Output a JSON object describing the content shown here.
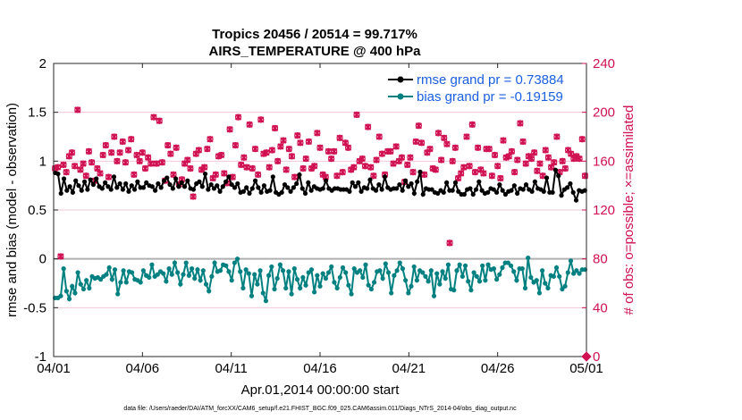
{
  "chart_data": {
    "type": "line",
    "title": "Tropics 20456 / 20514 = 99.717%",
    "subtitle": "AIRS_TEMPERATURE @ 400 hPa",
    "xlabel": "Apr.01,2014 00:00:00 start",
    "ylabel": "rmse and bias (model - observation)",
    "ylabel_right": "# of obs: o=possible; ×=assimilated",
    "xlim": [
      0,
      30
    ],
    "ylim": [
      -1,
      2
    ],
    "ylim_right": [
      0,
      240
    ],
    "x_tick_values": [
      0,
      5,
      10,
      15,
      20,
      25,
      30
    ],
    "x_tick_labels": [
      "04/01",
      "04/06",
      "04/11",
      "04/16",
      "04/21",
      "04/26",
      "05/01"
    ],
    "y_tick_values": [
      -1,
      -0.5,
      0,
      0.5,
      1,
      1.5,
      2
    ],
    "y_tick_labels": [
      "-1",
      "-0.5",
      "0",
      "0.5",
      "1",
      "1.5",
      "2"
    ],
    "y2_tick_values": [
      0,
      40,
      80,
      120,
      160,
      200,
      240
    ],
    "y2_tick_labels": [
      "0",
      "40",
      "80",
      "120",
      "160",
      "200",
      "240"
    ],
    "legend_position": "top-right",
    "series": [
      {
        "name": "rmse grand pr = 0.73884",
        "axis": "left",
        "color": "#000000",
        "marker": "circle",
        "values": [
          0.88,
          0.87,
          0.67,
          0.82,
          0.7,
          0.74,
          0.68,
          0.8,
          0.75,
          0.7,
          0.79,
          0.71,
          0.81,
          0.76,
          0.82,
          0.74,
          0.72,
          0.78,
          0.74,
          0.71,
          0.84,
          0.73,
          0.77,
          0.71,
          0.77,
          0.69,
          0.75,
          0.71,
          0.79,
          0.73,
          0.73,
          0.78,
          0.75,
          0.74,
          0.7,
          0.77,
          0.73,
          0.8,
          0.83,
          0.76,
          0.72,
          0.82,
          0.74,
          0.78,
          0.74,
          0.8,
          0.72,
          0.71,
          0.77,
          0.79,
          0.74,
          0.87,
          0.71,
          0.76,
          0.72,
          0.75,
          0.69,
          0.74,
          0.79,
          0.84,
          0.76,
          0.73,
          0.77,
          0.68,
          0.69,
          0.73,
          0.67,
          0.72,
          0.8,
          0.73,
          0.68,
          0.75,
          0.69,
          0.7,
          0.84,
          0.68,
          0.66,
          0.68,
          0.76,
          0.73,
          0.69,
          0.73,
          0.77,
          0.86,
          0.72,
          0.67,
          0.78,
          0.7,
          0.74,
          0.72,
          0.71,
          0.72,
          0.8,
          0.72,
          0.7,
          0.72,
          0.72,
          0.71,
          0.71,
          0.71,
          0.69,
          0.78,
          0.74,
          0.78,
          0.69,
          0.73,
          0.72,
          0.81,
          0.72,
          0.7,
          0.76,
          0.71,
          0.84,
          0.73,
          0.71,
          0.72,
          0.72,
          0.76,
          0.7,
          0.8,
          0.74,
          0.77,
          0.67,
          0.79,
          0.89,
          0.66,
          0.72,
          0.71,
          0.71,
          0.68,
          0.67,
          0.7,
          0.68,
          0.78,
          0.7,
          0.7,
          0.78,
          0.69,
          0.66,
          0.66,
          0.71,
          0.72,
          0.66,
          0.71,
          0.79,
          0.7,
          0.67,
          0.68,
          0.72,
          0.71,
          0.68,
          0.76,
          0.7,
          0.66,
          0.69,
          0.7,
          0.75,
          0.67,
          0.72,
          0.71,
          0.76,
          0.71,
          0.69,
          0.79,
          0.72,
          0.71,
          0.69,
          0.83,
          0.68,
          0.68,
          0.91,
          0.85,
          0.65,
          0.71,
          0.73,
          0.77,
          0.68,
          0.6,
          0.7,
          0.69,
          0.7
        ]
      },
      {
        "name": "bias grand pr = -0.19159",
        "axis": "left",
        "color": "#008080",
        "marker": "circle",
        "values": [
          -0.4,
          -0.4,
          -0.38,
          -0.1,
          -0.33,
          -0.41,
          -0.28,
          -0.35,
          -0.14,
          -0.26,
          -0.31,
          -0.22,
          -0.3,
          -0.18,
          -0.2,
          -0.19,
          -0.21,
          -0.18,
          -0.16,
          -0.09,
          -0.21,
          -0.11,
          -0.36,
          -0.24,
          -0.12,
          -0.24,
          -0.13,
          -0.14,
          -0.21,
          -0.22,
          -0.24,
          -0.12,
          -0.17,
          -0.19,
          -0.06,
          -0.18,
          -0.16,
          -0.13,
          -0.15,
          -0.23,
          -0.1,
          -0.16,
          -0.04,
          -0.14,
          -0.26,
          -0.16,
          -0.04,
          -0.17,
          -0.1,
          -0.2,
          -0.11,
          -0.22,
          -0.12,
          -0.26,
          -0.33,
          -0.18,
          -0.04,
          -0.13,
          -0.12,
          -0.06,
          -0.07,
          -0.13,
          -0.22,
          -0.04,
          0.0,
          -0.13,
          -0.3,
          -0.11,
          -0.15,
          -0.38,
          -0.16,
          -0.26,
          -0.12,
          -0.35,
          -0.43,
          -0.17,
          -0.08,
          -0.31,
          -0.2,
          -0.06,
          -0.12,
          -0.3,
          -0.13,
          -0.36,
          -0.1,
          -0.21,
          -0.3,
          -0.19,
          -0.27,
          -0.14,
          -0.11,
          -0.34,
          -0.17,
          -0.28,
          -0.15,
          -0.2,
          -0.14,
          -0.08,
          -0.24,
          -0.3,
          -0.19,
          -0.09,
          -0.14,
          -0.27,
          -0.36,
          -0.1,
          -0.14,
          -0.12,
          -0.19,
          -0.06,
          -0.27,
          -0.31,
          -0.24,
          -0.13,
          -0.12,
          -0.2,
          -0.05,
          -0.14,
          -0.35,
          -0.17,
          -0.12,
          -0.04,
          -0.1,
          -0.22,
          -0.35,
          -0.28,
          -0.08,
          -0.22,
          -0.12,
          -0.14,
          -0.18,
          -0.23,
          -0.12,
          -0.38,
          -0.15,
          -0.26,
          -0.13,
          -0.2,
          -0.06,
          -0.31,
          -0.32,
          -0.12,
          -0.06,
          -0.18,
          -0.07,
          -0.23,
          -0.32,
          -0.14,
          -0.18,
          -0.23,
          -0.07,
          -0.22,
          -0.06,
          -0.11,
          -0.1,
          -0.21,
          -0.16,
          -0.09,
          -0.04,
          -0.04,
          -0.07,
          -0.13,
          -0.22,
          -0.1,
          -0.1,
          -0.3,
          0.01,
          -0.19,
          -0.24,
          -0.22,
          -0.35,
          -0.12,
          -0.25,
          -0.3,
          -0.17,
          -0.18,
          -0.09,
          -0.18,
          -0.31,
          -0.28,
          -0.14,
          -0.02,
          -0.15,
          -0.12,
          -0.15,
          -0.11,
          -0.11
        ]
      },
      {
        "name": "# of obs possible",
        "axis": "right",
        "color": "#d01050",
        "marker": "circle-open",
        "values": [
          154,
          155,
          82,
          157,
          151,
          164,
          167,
          156,
          202,
          153,
          158,
          148,
          168,
          159,
          144,
          154,
          150,
          165,
          173,
          147,
          167,
          180,
          160,
          167,
          176,
          159,
          169,
          178,
          149,
          165,
          160,
          167,
          154,
          163,
          158,
          196,
          158,
          193,
          159,
          144,
          173,
          166,
          149,
          171,
          141,
          145,
          158,
          161,
          154,
          131,
          166,
          169,
          153,
          155,
          170,
          178,
          146,
          149,
          164,
          165,
          150,
          142,
          186,
          147,
          173,
          196,
          157,
          163,
          155,
          190,
          154,
          170,
          149,
          194,
          166,
          167,
          155,
          169,
          187,
          160,
          172,
          177,
          153,
          170,
          164,
          147,
          181,
          175,
          154,
          162,
          176,
          154,
          156,
          183,
          171,
          149,
          147,
          168,
          162,
          168,
          148,
          179,
          151,
          175,
          171,
          153,
          155,
          198,
          160,
          162,
          156,
          188,
          155,
          148,
          161,
          180,
          166,
          149,
          168,
          168,
          158,
          172,
          160,
          163,
          143,
          157,
          163,
          151,
          176,
          189,
          175,
          149,
          167,
          170,
          154,
          153,
          183,
          161,
          179,
          174,
          93,
          160,
          171,
          146,
          150,
          155,
          180,
          156,
          190,
          151,
          171,
          153,
          150,
          170,
          170,
          148,
          165,
          156,
          146,
          177,
          163,
          164,
          168,
          151,
          161,
          191,
          176,
          158,
          164,
          162,
          167,
          152,
          158,
          148,
          169,
          163,
          155,
          159,
          180,
          151,
          160,
          154,
          169,
          166,
          162,
          164,
          162,
          178,
          148
        ]
      },
      {
        "name": "# of obs assimilated",
        "axis": "right",
        "color": "#d01050",
        "marker": "x",
        "values": [
          154,
          155,
          82,
          157,
          151,
          164,
          167,
          156,
          202,
          153,
          158,
          148,
          168,
          159,
          144,
          154,
          150,
          165,
          173,
          147,
          167,
          180,
          160,
          167,
          176,
          159,
          169,
          178,
          149,
          165,
          160,
          167,
          154,
          163,
          158,
          196,
          158,
          193,
          159,
          144,
          173,
          166,
          149,
          171,
          141,
          145,
          158,
          161,
          154,
          131,
          166,
          169,
          153,
          155,
          170,
          178,
          146,
          149,
          164,
          165,
          150,
          142,
          186,
          147,
          173,
          196,
          157,
          163,
          155,
          190,
          154,
          170,
          149,
          194,
          166,
          167,
          155,
          169,
          187,
          160,
          172,
          177,
          153,
          170,
          164,
          147,
          181,
          175,
          154,
          162,
          176,
          154,
          156,
          183,
          171,
          149,
          147,
          168,
          162,
          168,
          148,
          179,
          151,
          175,
          171,
          153,
          155,
          198,
          160,
          162,
          156,
          188,
          155,
          148,
          161,
          180,
          166,
          149,
          168,
          168,
          158,
          172,
          160,
          163,
          143,
          157,
          163,
          151,
          176,
          189,
          175,
          149,
          167,
          170,
          154,
          153,
          183,
          161,
          179,
          174,
          93,
          160,
          171,
          146,
          150,
          155,
          180,
          156,
          190,
          151,
          171,
          153,
          150,
          170,
          170,
          148,
          165,
          156,
          146,
          177,
          163,
          164,
          168,
          151,
          161,
          191,
          176,
          158,
          164,
          162,
          167,
          152,
          158,
          148,
          169,
          163,
          155,
          159,
          180,
          151,
          160,
          154,
          169,
          166,
          162,
          164,
          162,
          178,
          148
        ]
      }
    ],
    "footer": "data file: /Users/raeder/DAI/ATM_forcXX/CAM6_setup/f.e21.FHIST_BGC.f09_025.CAM6assim.011/Diags_NTrS_2014-04/obs_diag_output.nc"
  }
}
